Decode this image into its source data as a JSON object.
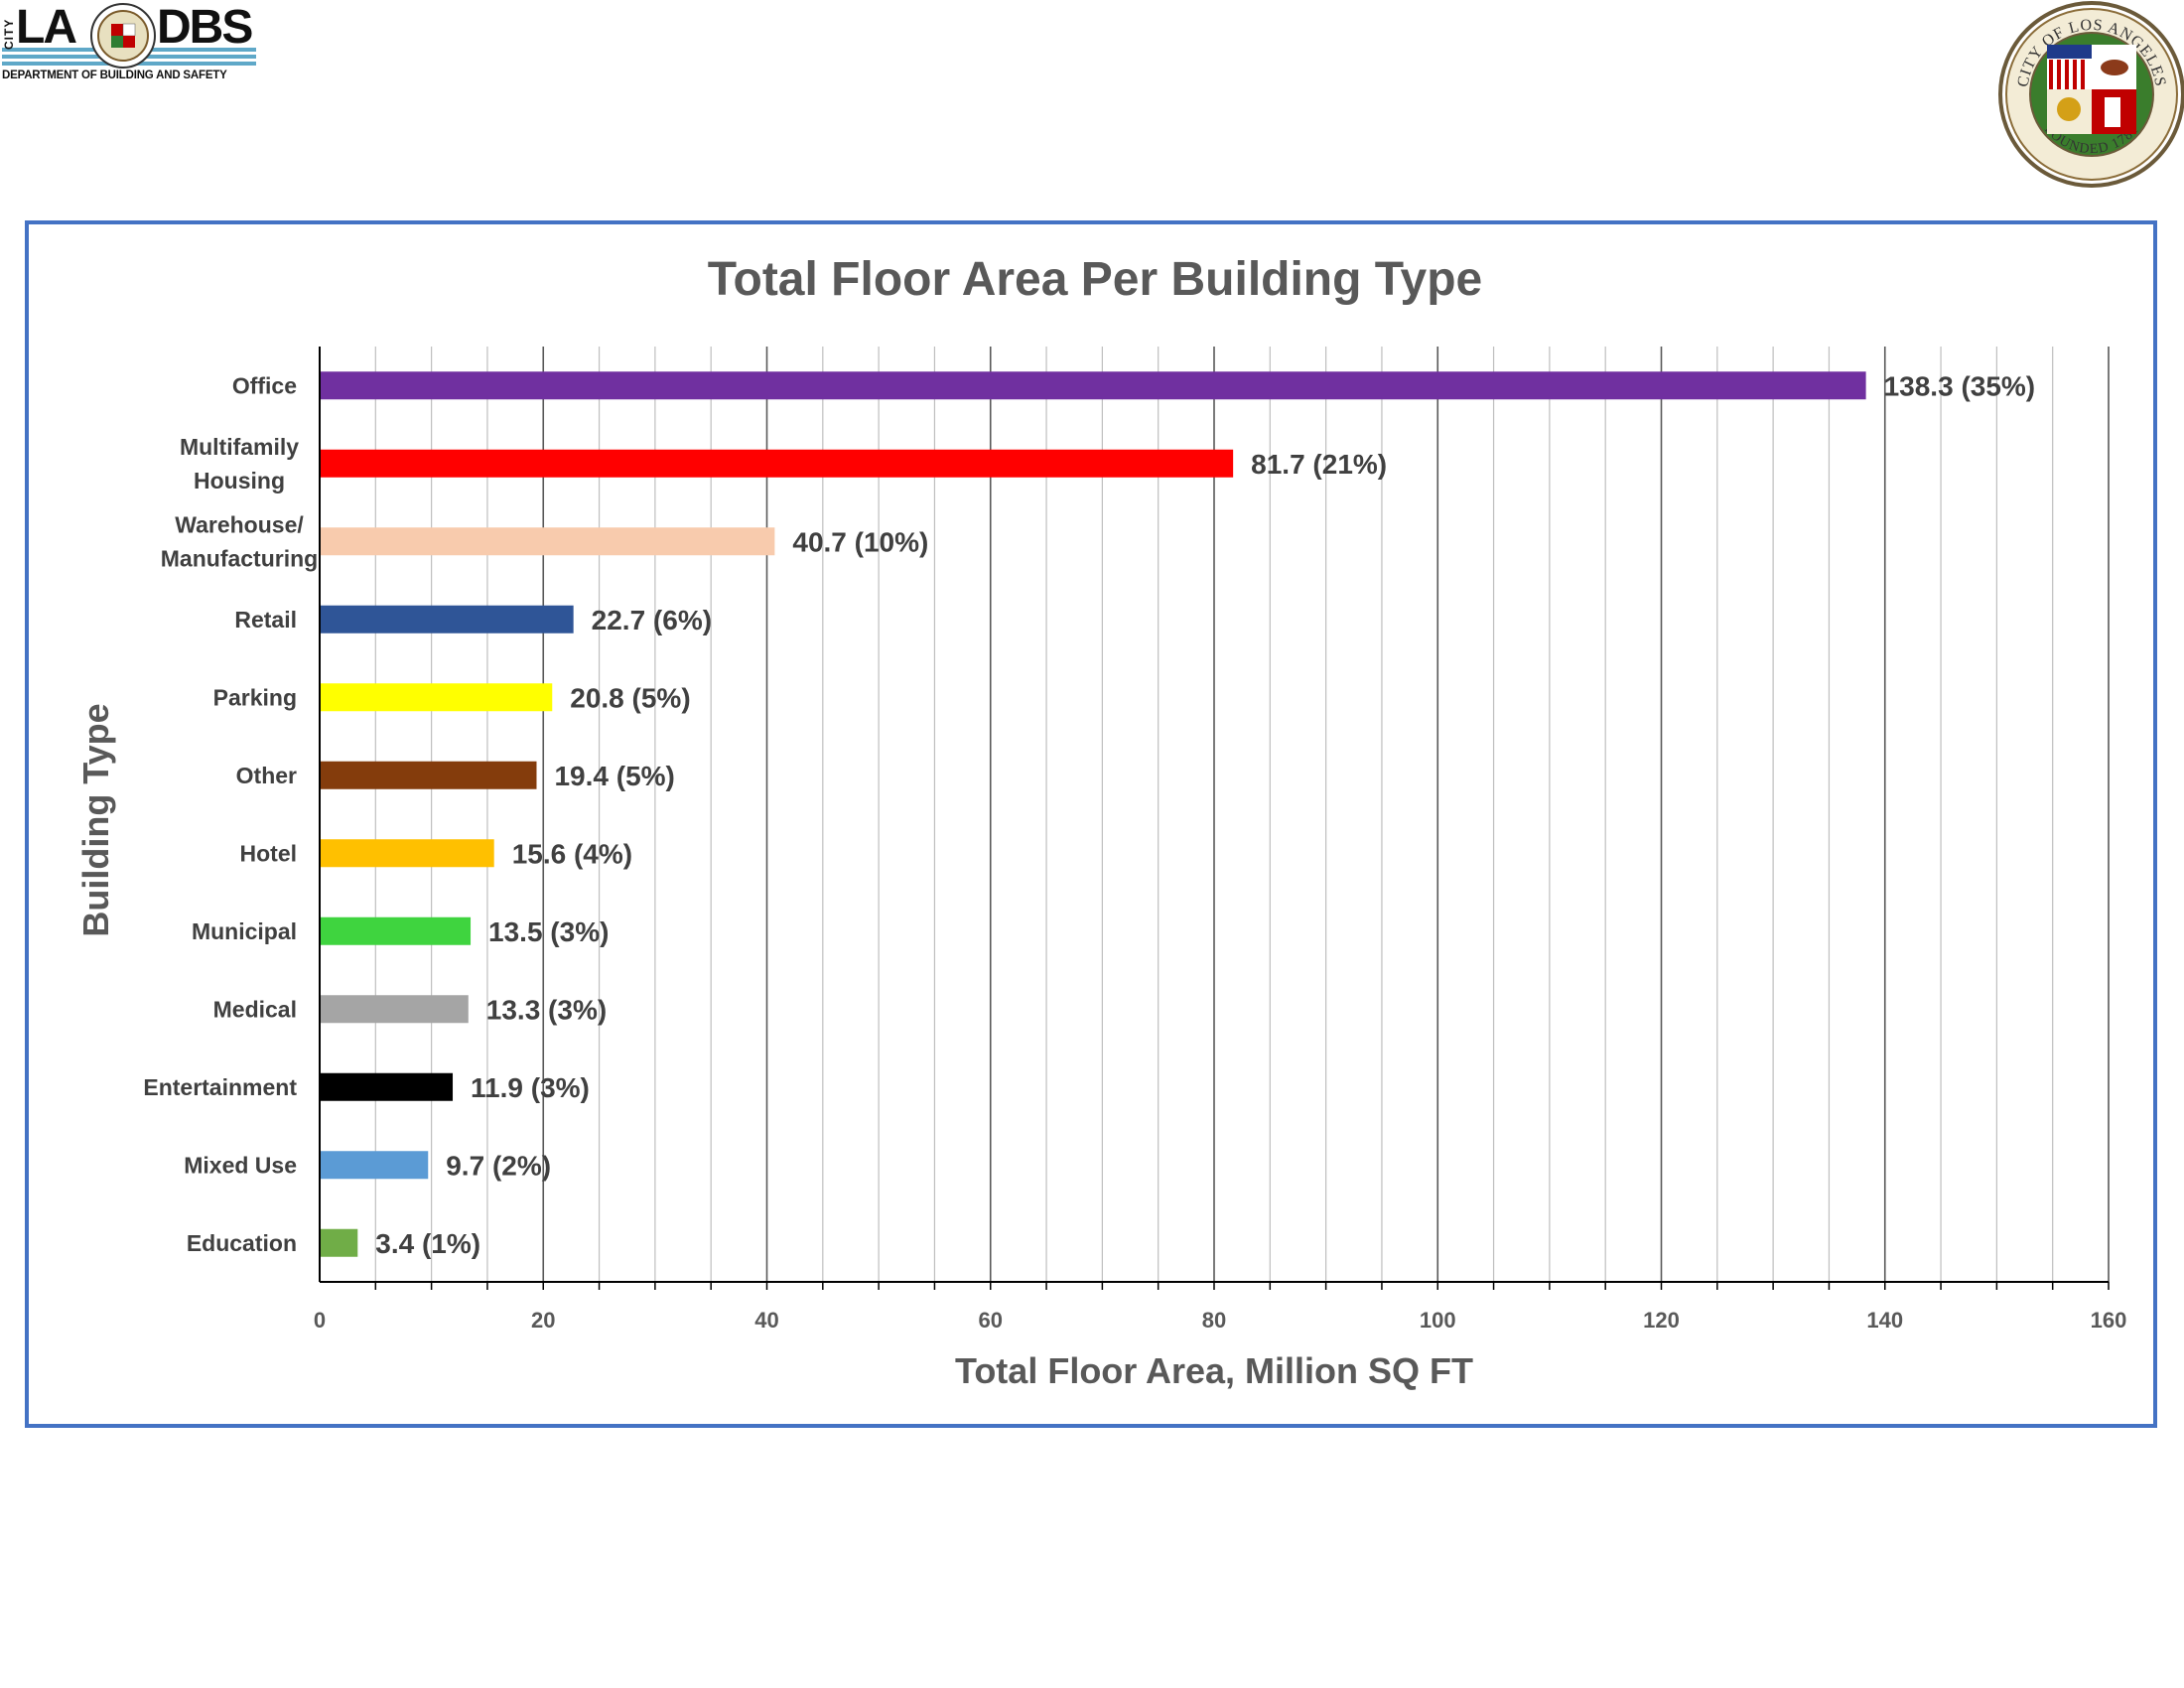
{
  "header": {
    "logo": {
      "city_text": "CITY",
      "la_text": "LA",
      "dbs_text": "DBS",
      "department_text": "DEPARTMENT OF BUILDING AND SAFETY"
    },
    "seal": {
      "top_text": "CITY OF LOS ANGELES",
      "bottom_text": "FOUNDED 1781"
    }
  },
  "colors": {
    "frame_border": "#4472c4",
    "title_text": "#595959",
    "label_text": "#404040",
    "gridline_major": "#595959",
    "gridline_minor": "#bfbfbf"
  },
  "chart_data": {
    "type": "bar",
    "orientation": "horizontal",
    "title": "Total Floor Area Per Building Type",
    "xlabel": "Total Floor Area, Million SQ FT",
    "ylabel": "Building Type",
    "xlim": [
      0,
      160
    ],
    "x_major_ticks": [
      0,
      20,
      40,
      60,
      80,
      100,
      120,
      140,
      160
    ],
    "x_minor_step": 5,
    "grid": true,
    "legend": "none",
    "categories": [
      [
        "Office"
      ],
      [
        "Multifamily",
        "Housing"
      ],
      [
        "Warehouse/",
        "Manufacturing"
      ],
      [
        "Retail"
      ],
      [
        "Parking"
      ],
      [
        "Other"
      ],
      [
        "Hotel"
      ],
      [
        "Municipal"
      ],
      [
        "Medical"
      ],
      [
        "Entertainment"
      ],
      [
        "Mixed Use"
      ],
      [
        "Education"
      ]
    ],
    "values": [
      138.3,
      81.7,
      40.7,
      22.7,
      20.8,
      19.4,
      15.6,
      13.5,
      13.3,
      11.9,
      9.7,
      3.4
    ],
    "data_labels": [
      "138.3 (35%)",
      "81.7 (21%)",
      "40.7 (10%)",
      "22.7 (6%)",
      "20.8 (5%)",
      "19.4 (5%)",
      "15.6 (4%)",
      "13.5 (3%)",
      "13.3 (3%)",
      "11.9 (3%)",
      "9.7 (2%)",
      "3.4 (1%)"
    ],
    "bar_colors": [
      "#7030a0",
      "#ff0000",
      "#f8cbad",
      "#2f5597",
      "#ffff00",
      "#843c0c",
      "#ffc000",
      "#3fd43f",
      "#a5a5a5",
      "#000000",
      "#5b9bd5",
      "#70ad47"
    ]
  }
}
